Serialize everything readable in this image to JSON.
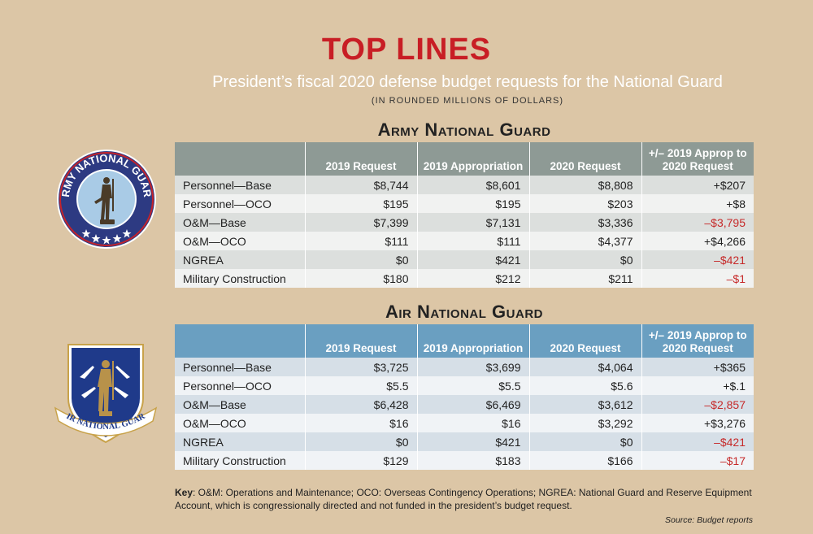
{
  "header": {
    "title": "TOP LINES",
    "subtitle": "President’s fiscal 2020 defense budget requests for the National Guard",
    "units": "(IN ROUNDED MILLIONS OF DOLLARS)"
  },
  "army": {
    "title": "Army National Guard",
    "seal_text": "ARMY NATIONAL GUARD",
    "columns": [
      "",
      "2019 Request",
      "2019 Appropriation",
      "2020 Request",
      "+/– 2019 Approp to 2020 Request"
    ],
    "rows": [
      [
        "Personnel—Base",
        "$8,744",
        "$8,601",
        "$8,808",
        "+$207"
      ],
      [
        "Personnel—OCO",
        "$195",
        "$195",
        "$203",
        "+$8"
      ],
      [
        "O&M—Base",
        "$7,399",
        "$7,131",
        "$3,336",
        "–$3,795"
      ],
      [
        "O&M—OCO",
        "$111",
        "$111",
        "$4,377",
        "+$4,266"
      ],
      [
        "NGREA",
        "$0",
        "$421",
        "$0",
        "–$421"
      ],
      [
        "Military Construction",
        "$180",
        "$212",
        "$211",
        "–$1"
      ]
    ]
  },
  "air": {
    "title": "Air National Guard",
    "seal_text": "AIR NATIONAL GUARD",
    "columns": [
      "",
      "2019 Request",
      "2019 Appropriation",
      "2020 Request",
      "+/– 2019 Approp to 2020 Request"
    ],
    "rows": [
      [
        "Personnel—Base",
        "$3,725",
        "$3,699",
        "$4,064",
        "+$365"
      ],
      [
        "Personnel—OCO",
        "$5.5",
        "$5.5",
        "$5.6",
        "+$.1"
      ],
      [
        "O&M—Base",
        "$6,428",
        "$6,469",
        "$3,612",
        "–$2,857"
      ],
      [
        "O&M—OCO",
        "$16",
        "$16",
        "$3,292",
        "+$3,276"
      ],
      [
        "NGREA",
        "$0",
        "$421",
        "$0",
        "–$421"
      ],
      [
        "Military Construction",
        "$129",
        "$183",
        "$166",
        "–$17"
      ]
    ]
  },
  "key": {
    "label": "Key",
    "text": ": O&M: Operations and Maintenance; OCO: Overseas Contingency Operations; NGREA: National Guard and Reserve Equipment Account, which is congressionally directed and not funded in the president’s budget request."
  },
  "source": "Source: Budget reports",
  "colors": {
    "title_red": "#c81e25",
    "army_header": "#8e9a95",
    "air_header": "#6a9fc1",
    "negative": "#c62a2a",
    "background": "#dcc6a6"
  }
}
